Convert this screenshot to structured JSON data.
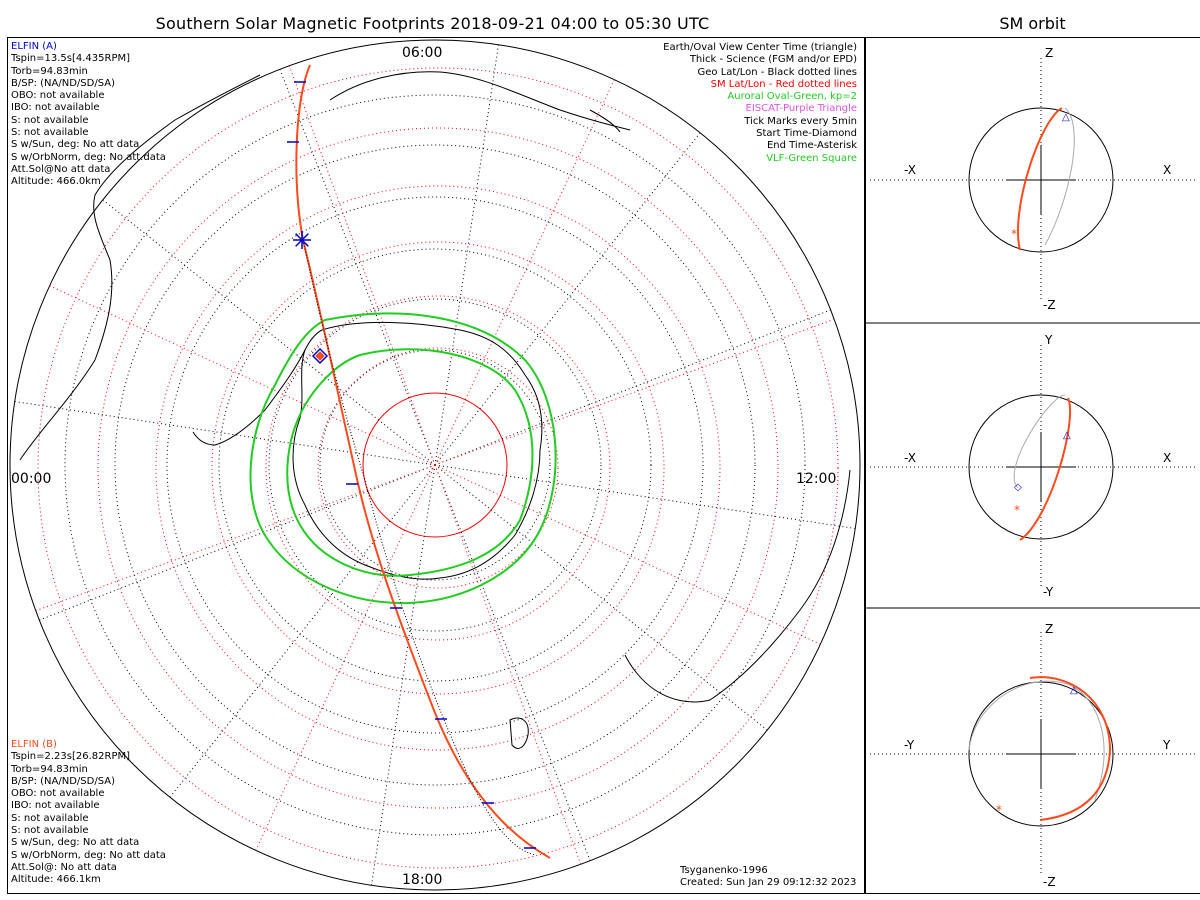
{
  "title": "Southern Solar Magnetic Footprints 2018-09-21 04:00 to 05:30 UTC",
  "side_title": "SM orbit",
  "time_labels": {
    "top": "06:00",
    "left": "00:00",
    "right": "12:00",
    "bottom": "18:00"
  },
  "elfin_a": {
    "name": "ELFIN (A)",
    "color": "#0000cc",
    "lines": [
      "Tspin=13.5s[4.435RPM]",
      "Torb=94.83min",
      "B/SP: (NA/ND/SD/SA)",
      "OBO: not available",
      "IBO: not available",
      "S: not available",
      "S: not available",
      "S w/Sun, deg: No att data",
      "S w/OrbNorm, deg: No att.data",
      "Att.Sol@No att data",
      "Altitude: 466.0km"
    ]
  },
  "elfin_b": {
    "name": "ELFIN (B)",
    "color": "#ff4a1c",
    "lines": [
      "Tspin=2.23s[26.82RPM]",
      "Torb=94.83min",
      "B/SP: (NA/ND/SD/SA)",
      "OBO: not available",
      "IBO: not available",
      "S: not available",
      "S: not available",
      "S w/Sun, deg: No att data",
      "S w/OrbNorm, deg: No att data",
      "Att.Sol@: No att data",
      "Altitude: 466.1km"
    ]
  },
  "legend": [
    {
      "text": "Earth/Oval View Center Time (triangle)",
      "color": "#000000"
    },
    {
      "text": "Thick - Science (FGM and/or EPD)",
      "color": "#000000"
    },
    {
      "text": "Geo Lat/Lon - Black dotted lines",
      "color": "#000000"
    },
    {
      "text": "SM Lat/Lon - Red dotted lines",
      "color": "#ff0000"
    },
    {
      "text": "Auroral Oval-Green, kp=2",
      "color": "#22cc22"
    },
    {
      "text": "EISCAT-Purple Triangle",
      "color": "#dd55dd"
    },
    {
      "text": "Tick Marks every 5min",
      "color": "#000000"
    },
    {
      "text": "Start Time-Diamond",
      "color": "#000000"
    },
    {
      "text": "End Time-Asterisk",
      "color": "#000000"
    },
    {
      "text": "VLF-Green Square",
      "color": "#22cc22"
    }
  ],
  "footer": {
    "model": "Tsyganenko-1996",
    "created": "Created: Sun Jan 29 09:12:32 2023"
  },
  "orbit_panels": [
    {
      "name": "xz",
      "top": "Z",
      "bottom": "-Z",
      "left": "-X",
      "right": "X"
    },
    {
      "name": "xy",
      "top": "Y",
      "bottom": "-Y",
      "left": "-X",
      "right": "X"
    },
    {
      "name": "yz",
      "top": "Z",
      "bottom": "-Z",
      "left": "-Y",
      "right": "Y"
    }
  ],
  "colors": {
    "orbit_a": "#0000cc",
    "orbit_b": "#ff4a1c",
    "oval": "#22cc22",
    "sm_grid": "#ff0000",
    "geo_grid": "#000000",
    "gray": "#aaaaaa"
  }
}
